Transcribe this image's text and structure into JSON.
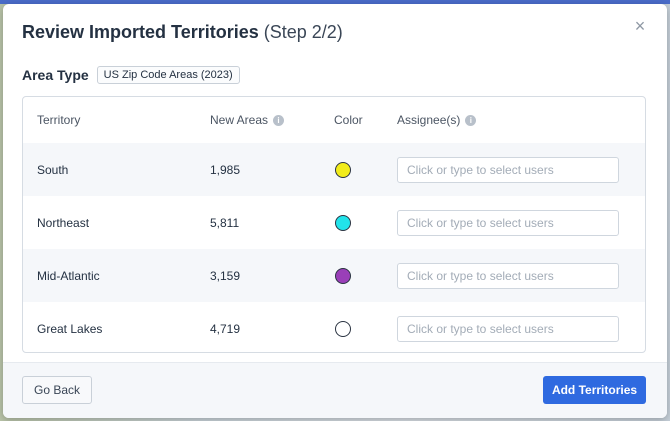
{
  "modal": {
    "title": "Review Imported Territories",
    "step": "(Step 2/2)",
    "close_glyph": "×"
  },
  "area_type": {
    "label": "Area Type",
    "value": "US Zip Code Areas (2023)"
  },
  "table": {
    "headers": {
      "territory": "Territory",
      "new_areas": "New Areas",
      "color": "Color",
      "assignees": "Assignee(s)"
    },
    "info_glyph": "i",
    "rows": [
      {
        "territory": "South",
        "new_areas": "1,985",
        "color": "#f2ec1a",
        "assignee_value": "",
        "assignee_placeholder": "Click or type to select users"
      },
      {
        "territory": "Northeast",
        "new_areas": "5,811",
        "color": "#22e3ea",
        "assignee_value": "",
        "assignee_placeholder": "Click or type to select users"
      },
      {
        "territory": "Mid-Atlantic",
        "new_areas": "3,159",
        "color": "#9a3fb8",
        "assignee_value": "",
        "assignee_placeholder": "Click or type to select users"
      },
      {
        "territory": "Great Lakes",
        "new_areas": "4,719",
        "color": "#ffffff",
        "assignee_value": "",
        "assignee_placeholder": "Click or type to select users"
      }
    ]
  },
  "footer": {
    "back_label": "Go Back",
    "add_label": "Add Territories"
  },
  "icons": {
    "close": "close-icon",
    "info": "info-icon"
  }
}
